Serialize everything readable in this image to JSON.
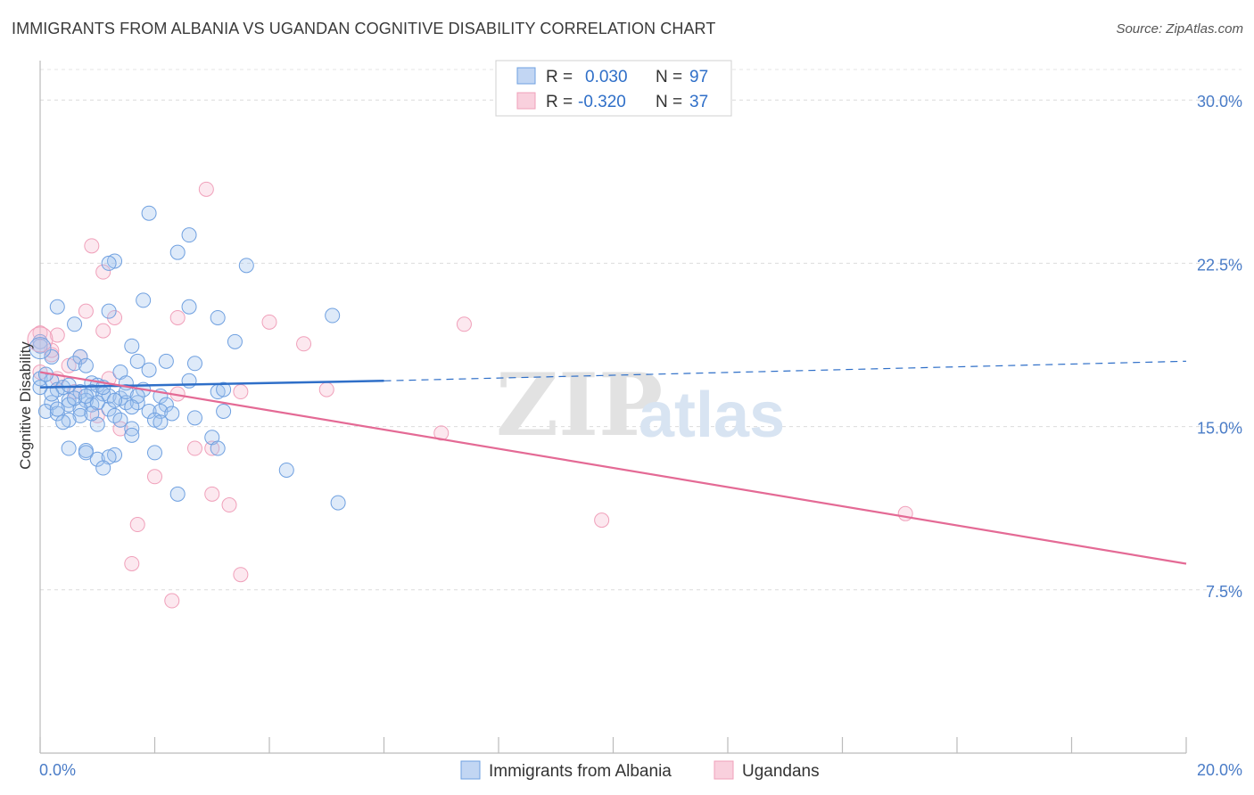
{
  "title": "IMMIGRANTS FROM ALBANIA VS UGANDAN COGNITIVE DISABILITY CORRELATION CHART",
  "source": "Source: ZipAtlas.com",
  "watermark": {
    "zip": "ZIP",
    "atlas": "atlas"
  },
  "colors": {
    "blue": "#6fa0e0",
    "blue_line": "#2f6fc8",
    "pink": "#f0a0ba",
    "pink_line": "#e46a95",
    "tick": "#4a7cc7"
  },
  "legend": {
    "rows": [
      {
        "r_label": "R =",
        "r_value": "0.030",
        "n_label": "N =",
        "n_value": "97"
      },
      {
        "r_label": "R =",
        "r_value": "-0.320",
        "n_label": "N =",
        "n_value": "37"
      }
    ]
  },
  "chart_data": {
    "type": "scatter",
    "title": "IMMIGRANTS FROM ALBANIA VS UGANDAN COGNITIVE DISABILITY CORRELATION CHART",
    "xlabel": "",
    "ylabel": "Cognitive Disability",
    "xlim": [
      0,
      20
    ],
    "ylim": [
      0,
      31.4
    ],
    "x_tick_labels": [
      "0.0%",
      "20.0%"
    ],
    "y_ticks": [
      7.5,
      15.0,
      22.5,
      30.0
    ],
    "y_tick_labels": [
      "7.5%",
      "15.0%",
      "22.5%",
      "30.0%"
    ],
    "grid": true,
    "series": [
      {
        "name": "Immigrants from Albania",
        "color": "#6fa0e0",
        "trend": {
          "x": [
            0,
            6.0
          ],
          "y": [
            16.8,
            17.1
          ],
          "dashed_to": [
            20,
            18.0
          ]
        },
        "points": [
          [
            1.9,
            24.8
          ],
          [
            2.6,
            23.8
          ],
          [
            2.4,
            23.0
          ],
          [
            3.6,
            22.4
          ],
          [
            1.3,
            22.6
          ],
          [
            1.2,
            22.5
          ],
          [
            0.3,
            20.5
          ],
          [
            2.6,
            20.5
          ],
          [
            1.8,
            20.8
          ],
          [
            5.1,
            20.1
          ],
          [
            3.1,
            20.0
          ],
          [
            1.2,
            20.3
          ],
          [
            0.6,
            19.7
          ],
          [
            3.4,
            18.9
          ],
          [
            1.6,
            18.7
          ],
          [
            0.2,
            18.2
          ],
          [
            0.0,
            18.9
          ],
          [
            0.0,
            18.7
          ],
          [
            0.7,
            18.2
          ],
          [
            0.6,
            17.9
          ],
          [
            1.7,
            18.0
          ],
          [
            2.2,
            18.0
          ],
          [
            2.7,
            17.9
          ],
          [
            0.8,
            17.8
          ],
          [
            1.4,
            17.5
          ],
          [
            1.9,
            17.6
          ],
          [
            0.0,
            17.2
          ],
          [
            0.2,
            17.1
          ],
          [
            0.9,
            17.0
          ],
          [
            1.5,
            17.0
          ],
          [
            2.6,
            17.1
          ],
          [
            1.0,
            16.9
          ],
          [
            1.8,
            16.7
          ],
          [
            0.3,
            16.7
          ],
          [
            0.7,
            16.6
          ],
          [
            0.9,
            16.6
          ],
          [
            1.1,
            16.5
          ],
          [
            2.1,
            16.4
          ],
          [
            3.1,
            16.6
          ],
          [
            3.2,
            16.7
          ],
          [
            1.2,
            16.4
          ],
          [
            1.4,
            16.3
          ],
          [
            0.5,
            16.2
          ],
          [
            0.8,
            16.2
          ],
          [
            0.2,
            16.1
          ],
          [
            0.5,
            16.0
          ],
          [
            0.9,
            16.0
          ],
          [
            1.5,
            16.1
          ],
          [
            1.7,
            16.1
          ],
          [
            2.2,
            16.0
          ],
          [
            0.7,
            15.8
          ],
          [
            1.2,
            15.8
          ],
          [
            1.9,
            15.7
          ],
          [
            2.1,
            15.7
          ],
          [
            0.1,
            15.7
          ],
          [
            3.2,
            15.7
          ],
          [
            0.3,
            15.6
          ],
          [
            0.7,
            15.5
          ],
          [
            1.3,
            15.5
          ],
          [
            2.7,
            15.4
          ],
          [
            0.5,
            15.3
          ],
          [
            1.4,
            15.3
          ],
          [
            2.0,
            15.3
          ],
          [
            2.1,
            15.2
          ],
          [
            1.0,
            15.1
          ],
          [
            1.6,
            14.9
          ],
          [
            3.0,
            14.5
          ],
          [
            0.5,
            14.0
          ],
          [
            1.6,
            14.6
          ],
          [
            3.1,
            14.0
          ],
          [
            0.8,
            13.9
          ],
          [
            2.0,
            13.8
          ],
          [
            0.8,
            13.8
          ],
          [
            1.3,
            13.7
          ],
          [
            1.0,
            13.5
          ],
          [
            1.2,
            13.6
          ],
          [
            4.3,
            13.0
          ],
          [
            1.1,
            13.1
          ],
          [
            2.4,
            11.9
          ],
          [
            5.2,
            11.5
          ],
          [
            0.4,
            16.8
          ],
          [
            1.5,
            16.6
          ],
          [
            0.1,
            17.4
          ],
          [
            0.0,
            16.8
          ],
          [
            1.1,
            16.8
          ],
          [
            0.6,
            16.3
          ],
          [
            0.3,
            15.8
          ],
          [
            1.0,
            16.1
          ],
          [
            1.7,
            16.4
          ],
          [
            2.3,
            15.6
          ],
          [
            0.9,
            15.6
          ],
          [
            0.4,
            15.2
          ],
          [
            1.3,
            16.2
          ],
          [
            0.2,
            16.5
          ],
          [
            0.5,
            16.9
          ],
          [
            0.8,
            16.4
          ],
          [
            1.6,
            15.9
          ]
        ]
      },
      {
        "name": "Ugandans",
        "color": "#f0a0ba",
        "trend": {
          "x": [
            0,
            20
          ],
          "y": [
            17.5,
            8.7
          ]
        },
        "points": [
          [
            2.9,
            25.9
          ],
          [
            0.9,
            23.3
          ],
          [
            1.1,
            22.1
          ],
          [
            0.8,
            20.3
          ],
          [
            1.3,
            20.0
          ],
          [
            2.4,
            20.0
          ],
          [
            4.0,
            19.8
          ],
          [
            7.4,
            19.7
          ],
          [
            0.0,
            19.3
          ],
          [
            1.1,
            19.4
          ],
          [
            0.3,
            19.2
          ],
          [
            4.6,
            18.8
          ],
          [
            0.2,
            18.3
          ],
          [
            0.7,
            18.2
          ],
          [
            0.5,
            17.8
          ],
          [
            0.0,
            17.5
          ],
          [
            0.3,
            17.2
          ],
          [
            1.2,
            17.2
          ],
          [
            0.6,
            16.6
          ],
          [
            2.4,
            16.5
          ],
          [
            3.5,
            16.6
          ],
          [
            5.0,
            16.7
          ],
          [
            1.0,
            15.5
          ],
          [
            1.4,
            14.9
          ],
          [
            7.0,
            14.7
          ],
          [
            2.7,
            14.0
          ],
          [
            3.0,
            14.0
          ],
          [
            2.0,
            12.7
          ],
          [
            3.0,
            11.9
          ],
          [
            3.3,
            11.4
          ],
          [
            15.1,
            11.0
          ],
          [
            9.8,
            10.7
          ],
          [
            1.7,
            10.5
          ],
          [
            1.6,
            8.7
          ],
          [
            3.5,
            8.2
          ],
          [
            2.3,
            7.0
          ],
          [
            0.2,
            18.5
          ]
        ]
      }
    ]
  },
  "bottom_legend": [
    {
      "label": "Immigrants from Albania"
    },
    {
      "label": "Ugandans"
    }
  ]
}
